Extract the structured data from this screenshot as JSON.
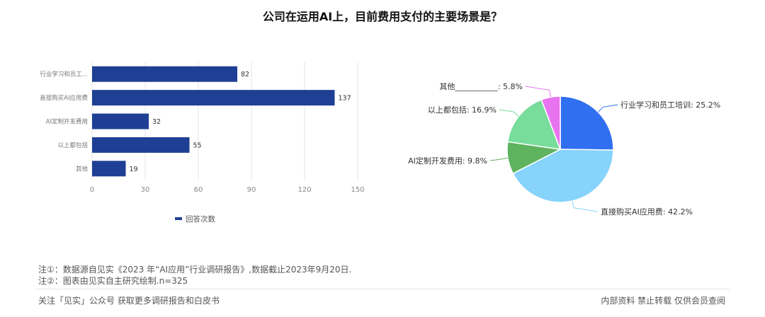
{
  "title": "公司在运用AI上，目前费用支付的主要场景是？",
  "chart_data": [
    {
      "type": "bar",
      "orientation": "horizontal",
      "categories": [
        "行业学习和员工...",
        "直接购买AI应用费",
        "AI定制开发费用",
        "以上都包括",
        "其他"
      ],
      "series": [
        {
          "name": "回答次数",
          "values": [
            82,
            137,
            32,
            55,
            19
          ],
          "color": "#1f3f95"
        }
      ],
      "xticks": [
        0,
        30,
        60,
        90,
        120,
        150
      ],
      "xlim": [
        0,
        150
      ],
      "grid": true,
      "legend": "bottom"
    },
    {
      "type": "pie",
      "labels": [
        "行业学习和员工培训",
        "直接购买AI应用费",
        "AI定制开发费用",
        "以上都包括",
        "其他___________"
      ],
      "values": [
        25.2,
        42.2,
        9.8,
        16.9,
        5.8
      ],
      "display_labels": [
        "行业学习和员工培训: 25.2%",
        "直接购买AI应用费: 42.2%",
        "AI定制开发费用: 9.8%",
        "以上都包括: 16.9%",
        "其他___________: 5.8%"
      ],
      "colors": [
        "#2f6ff0",
        "#86d3fb",
        "#5fb35f",
        "#78dc9a",
        "#e873ef"
      ]
    }
  ],
  "notes": [
    "注①：数据源自见实《2023 年“AI应用”行业调研报告》,数据截止2023年9月20日.",
    "注②：图表由见实自主研究绘制.n=325"
  ],
  "footer": {
    "left": "关注「见实」公众号 获取更多调研报告和白皮书",
    "right": "内部资料 禁止转载 仅供会员查阅"
  }
}
